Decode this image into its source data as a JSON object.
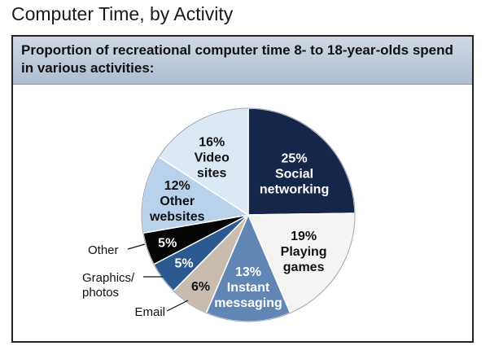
{
  "page": {
    "title": "Computer Time, by Activity"
  },
  "chart_data": {
    "type": "pie",
    "title": "Proportion of recreational computer time 8- to 18-year-olds spend in various activities:",
    "slices": [
      {
        "name": "Social networking",
        "pct_label": "25%",
        "lines": [
          "Social",
          "networking"
        ],
        "value": 25,
        "color": "#16254a",
        "text_color": "#ffffff"
      },
      {
        "name": "Playing games",
        "pct_label": "19%",
        "lines": [
          "Playing",
          "games"
        ],
        "value": 19,
        "color": "#f4f4f5",
        "text_color": "#111111"
      },
      {
        "name": "Instant messaging",
        "pct_label": "13%",
        "lines": [
          "Instant",
          "messaging"
        ],
        "value": 13,
        "color": "#5f86b4",
        "text_color": "#ffffff"
      },
      {
        "name": "Email",
        "pct_label": "6%",
        "lines": [],
        "value": 6,
        "color": "#c8bcb0",
        "text_color": "#111111",
        "callout": [
          "Email"
        ]
      },
      {
        "name": "Graphics/photos",
        "pct_label": "5%",
        "lines": [],
        "value": 5,
        "color": "#2b5a90",
        "text_color": "#ffffff",
        "callout": [
          "Graphics/",
          "photos"
        ]
      },
      {
        "name": "Other",
        "pct_label": "5%",
        "lines": [],
        "value": 5,
        "color": "#050505",
        "text_color": "#ffffff",
        "callout": [
          "Other"
        ]
      },
      {
        "name": "Other websites",
        "pct_label": "12%",
        "lines": [
          "Other",
          "websites"
        ],
        "value": 12,
        "color": "#b8d2ec",
        "text_color": "#111111"
      },
      {
        "name": "Video sites",
        "pct_label": "16%",
        "lines": [
          "Video",
          "sites"
        ],
        "value": 16,
        "color": "#dde8f5",
        "text_color": "#111111"
      }
    ]
  }
}
